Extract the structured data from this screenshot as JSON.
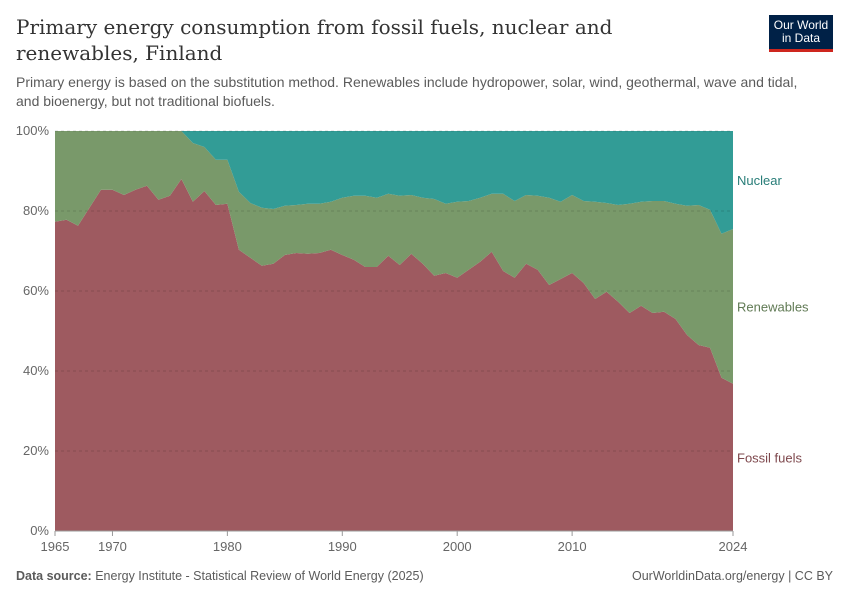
{
  "header": {
    "title": "Primary energy consumption from fossil fuels, nuclear and renewables, Finland",
    "subtitle": "Primary energy is based on the substitution method. Renewables include hydropower, solar, wind, geothermal, wave and tidal, and bioenergy, but not traditional biofuels.",
    "logo": "Our World in Data"
  },
  "footer": {
    "source_label": "Data source:",
    "source": "Energy Institute - Statistical Review of World Energy (2025)",
    "credit": "OurWorldinData.org/energy | CC BY"
  },
  "chart_data": {
    "type": "area",
    "stacked": true,
    "relative": true,
    "x": [
      1965,
      1966,
      1967,
      1968,
      1969,
      1970,
      1971,
      1972,
      1973,
      1974,
      1975,
      1976,
      1977,
      1978,
      1979,
      1980,
      1981,
      1982,
      1983,
      1984,
      1985,
      1986,
      1987,
      1988,
      1989,
      1990,
      1991,
      1992,
      1993,
      1994,
      1995,
      1996,
      1997,
      1998,
      1999,
      2000,
      2001,
      2002,
      2003,
      2004,
      2005,
      2006,
      2007,
      2008,
      2009,
      2010,
      2011,
      2012,
      2013,
      2014,
      2015,
      2016,
      2017,
      2018,
      2019,
      2020,
      2021,
      2022,
      2023,
      2024
    ],
    "series": [
      {
        "name": "Fossil fuels",
        "color": "#9e5a60",
        "values": [
          77.3,
          77.8,
          76.3,
          80.8,
          85.3,
          85.3,
          84,
          85.3,
          86.3,
          82.8,
          83.8,
          88,
          82.3,
          85,
          81.5,
          81.8,
          70.3,
          68.3,
          66.3,
          66.8,
          69,
          69.5,
          69.3,
          69.5,
          70.3,
          69,
          67.8,
          66,
          66,
          68.8,
          66.5,
          69.3,
          66.8,
          63.8,
          64.5,
          63.3,
          65.3,
          67.3,
          69.8,
          65,
          63.3,
          66.8,
          65.3,
          61.5,
          63,
          64.5,
          62,
          58,
          59.8,
          57.3,
          54.5,
          56.3,
          54.5,
          54.8,
          53,
          49,
          46.5,
          45.8,
          38.3,
          36.8
        ]
      },
      {
        "name": "Renewables",
        "color": "#79996a",
        "values": [
          22.7,
          22.2,
          23.7,
          19.2,
          14.7,
          14.7,
          16,
          14.7,
          13.7,
          17.2,
          16.2,
          12,
          14.7,
          11,
          11.3,
          11,
          14.5,
          13.7,
          14.5,
          13.7,
          12.3,
          12,
          12.5,
          12.3,
          12,
          14.3,
          16,
          17.8,
          17.3,
          15.5,
          17.3,
          14.7,
          16.5,
          19.2,
          17.3,
          19,
          17.2,
          16,
          14.5,
          19.3,
          19.2,
          17.2,
          18.5,
          21.8,
          19.3,
          19.5,
          20.5,
          24.3,
          22.2,
          24.2,
          27.3,
          26,
          28,
          27.7,
          28.8,
          32.3,
          35,
          34.5,
          36,
          38.7
        ]
      },
      {
        "name": "Nuclear",
        "color": "#329c96",
        "values": [
          0,
          0,
          0,
          0,
          0,
          0,
          0,
          0,
          0,
          0,
          0,
          0,
          3,
          4,
          7.2,
          7.2,
          15.2,
          18,
          19.2,
          19.5,
          18.7,
          18.5,
          18.2,
          18.2,
          17.7,
          16.7,
          16.2,
          16.2,
          16.7,
          15.7,
          16.2,
          16,
          16.7,
          17,
          18.2,
          17.7,
          17.5,
          16.7,
          15.7,
          15.7,
          17.5,
          16,
          16.2,
          16.7,
          17.7,
          16,
          17.5,
          17.7,
          18,
          18.5,
          18.2,
          17.7,
          17.5,
          17.5,
          18.2,
          18.7,
          18.5,
          19.7,
          25.7,
          24.5
        ]
      }
    ],
    "yticks": [
      "0%",
      "20%",
      "40%",
      "60%",
      "80%",
      "100%"
    ],
    "ytick_values": [
      0,
      20,
      40,
      60,
      80,
      100
    ],
    "xticks": [
      1965,
      1970,
      1980,
      1990,
      2000,
      2010,
      2024
    ],
    "ylim": [
      0,
      100
    ],
    "xlim": [
      1965,
      2024
    ],
    "grid": "horizontal dashed",
    "legend": "right, inline labels"
  }
}
